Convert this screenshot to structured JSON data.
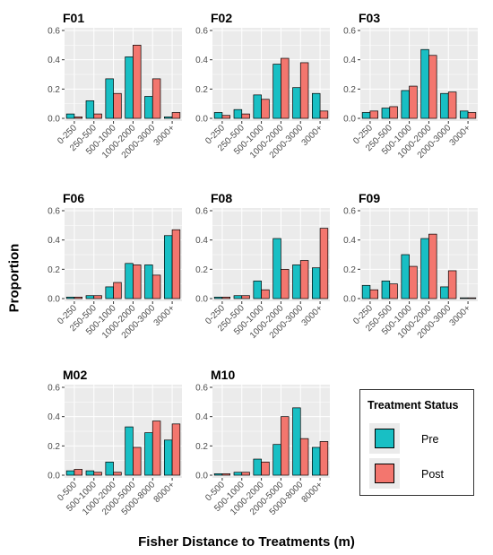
{
  "figure": {
    "ylabel": "Proportion",
    "xlabel": "Fisher Distance to Treatments (m)",
    "colors": {
      "pre": "#18bfc4",
      "post": "#f3766e",
      "panel_bg": "#ebebeb",
      "grid": "#ffffff"
    }
  },
  "legend": {
    "title": "Treatment Status",
    "items": [
      {
        "label": "Pre",
        "color": "#18bfc4"
      },
      {
        "label": "Post",
        "color": "#f3766e"
      }
    ]
  },
  "chart_data": [
    {
      "type": "bar",
      "title": "F01",
      "categories": [
        "0-250",
        "250-500",
        "500-1000",
        "1000-2000",
        "2000-3000",
        "3000+"
      ],
      "series": [
        {
          "name": "Pre",
          "values": [
            0.03,
            0.12,
            0.27,
            0.42,
            0.15,
            0.01
          ]
        },
        {
          "name": "Post",
          "values": [
            0.01,
            0.03,
            0.17,
            0.5,
            0.27,
            0.04
          ]
        }
      ],
      "ylim": [
        0,
        0.6
      ],
      "yticks": [
        "0.0",
        "0.2",
        "0.4",
        "0.6"
      ],
      "grid": true
    },
    {
      "type": "bar",
      "title": "F02",
      "categories": [
        "0-250",
        "250-500",
        "500-1000",
        "1000-2000",
        "2000-3000",
        "3000+"
      ],
      "series": [
        {
          "name": "Pre",
          "values": [
            0.04,
            0.06,
            0.16,
            0.37,
            0.21,
            0.17
          ]
        },
        {
          "name": "Post",
          "values": [
            0.02,
            0.03,
            0.13,
            0.41,
            0.38,
            0.05
          ]
        }
      ],
      "ylim": [
        0,
        0.6
      ],
      "yticks": [
        "0.0",
        "0.2",
        "0.4",
        "0.6"
      ],
      "grid": true
    },
    {
      "type": "bar",
      "title": "F03",
      "categories": [
        "0-250",
        "250-500",
        "500-1000",
        "1000-2000",
        "2000-3000",
        "3000+"
      ],
      "series": [
        {
          "name": "Pre",
          "values": [
            0.04,
            0.07,
            0.19,
            0.47,
            0.17,
            0.05
          ]
        },
        {
          "name": "Post",
          "values": [
            0.05,
            0.08,
            0.22,
            0.43,
            0.18,
            0.04
          ]
        }
      ],
      "ylim": [
        0,
        0.6
      ],
      "yticks": [
        "0.0",
        "0.2",
        "0.4",
        "0.6"
      ],
      "grid": true
    },
    {
      "type": "bar",
      "title": "F06",
      "categories": [
        "0-250",
        "250-500",
        "500-1000",
        "1000-2000",
        "2000-3000",
        "3000+"
      ],
      "series": [
        {
          "name": "Pre",
          "values": [
            0.01,
            0.02,
            0.08,
            0.24,
            0.23,
            0.43
          ]
        },
        {
          "name": "Post",
          "values": [
            0.01,
            0.02,
            0.11,
            0.23,
            0.16,
            0.47
          ]
        }
      ],
      "ylim": [
        0,
        0.6
      ],
      "yticks": [
        "0.0",
        "0.2",
        "0.4",
        "0.6"
      ],
      "grid": true
    },
    {
      "type": "bar",
      "title": "F08",
      "categories": [
        "0-250",
        "250-500",
        "500-1000",
        "1000-2000",
        "2000-3000",
        "3000+"
      ],
      "series": [
        {
          "name": "Pre",
          "values": [
            0.01,
            0.02,
            0.12,
            0.41,
            0.23,
            0.21
          ]
        },
        {
          "name": "Post",
          "values": [
            0.01,
            0.02,
            0.06,
            0.2,
            0.26,
            0.48
          ]
        }
      ],
      "ylim": [
        0,
        0.6
      ],
      "yticks": [
        "0.0",
        "0.2",
        "0.4",
        "0.6"
      ],
      "grid": true
    },
    {
      "type": "bar",
      "title": "F09",
      "categories": [
        "0-250",
        "250-500",
        "500-1000",
        "1000-2000",
        "2000-3000",
        "3000+"
      ],
      "series": [
        {
          "name": "Pre",
          "values": [
            0.09,
            0.12,
            0.3,
            0.41,
            0.08,
            0.005
          ]
        },
        {
          "name": "Post",
          "values": [
            0.06,
            0.1,
            0.22,
            0.44,
            0.19,
            0.005
          ]
        }
      ],
      "ylim": [
        0,
        0.6
      ],
      "yticks": [
        "0.0",
        "0.2",
        "0.4",
        "0.6"
      ],
      "grid": true
    },
    {
      "type": "bar",
      "title": "M02",
      "categories": [
        "0-500",
        "500-1000",
        "1000-2000",
        "2000-5000",
        "5000-8000",
        "8000+"
      ],
      "series": [
        {
          "name": "Pre",
          "values": [
            0.03,
            0.03,
            0.09,
            0.33,
            0.29,
            0.24
          ]
        },
        {
          "name": "Post",
          "values": [
            0.04,
            0.02,
            0.02,
            0.19,
            0.37,
            0.35
          ]
        }
      ],
      "ylim": [
        0,
        0.6
      ],
      "yticks": [
        "0.0",
        "0.2",
        "0.4",
        "0.6"
      ],
      "grid": true
    },
    {
      "type": "bar",
      "title": "M10",
      "categories": [
        "0-500",
        "500-1000",
        "1000-2000",
        "2000-5000",
        "5000-8000",
        "8000+"
      ],
      "series": [
        {
          "name": "Pre",
          "values": [
            0.01,
            0.02,
            0.11,
            0.21,
            0.46,
            0.19
          ]
        },
        {
          "name": "Post",
          "values": [
            0.01,
            0.02,
            0.09,
            0.4,
            0.25,
            0.23
          ]
        }
      ],
      "ylim": [
        0,
        0.6
      ],
      "yticks": [
        "0.0",
        "0.2",
        "0.4",
        "0.6"
      ],
      "grid": true
    }
  ]
}
